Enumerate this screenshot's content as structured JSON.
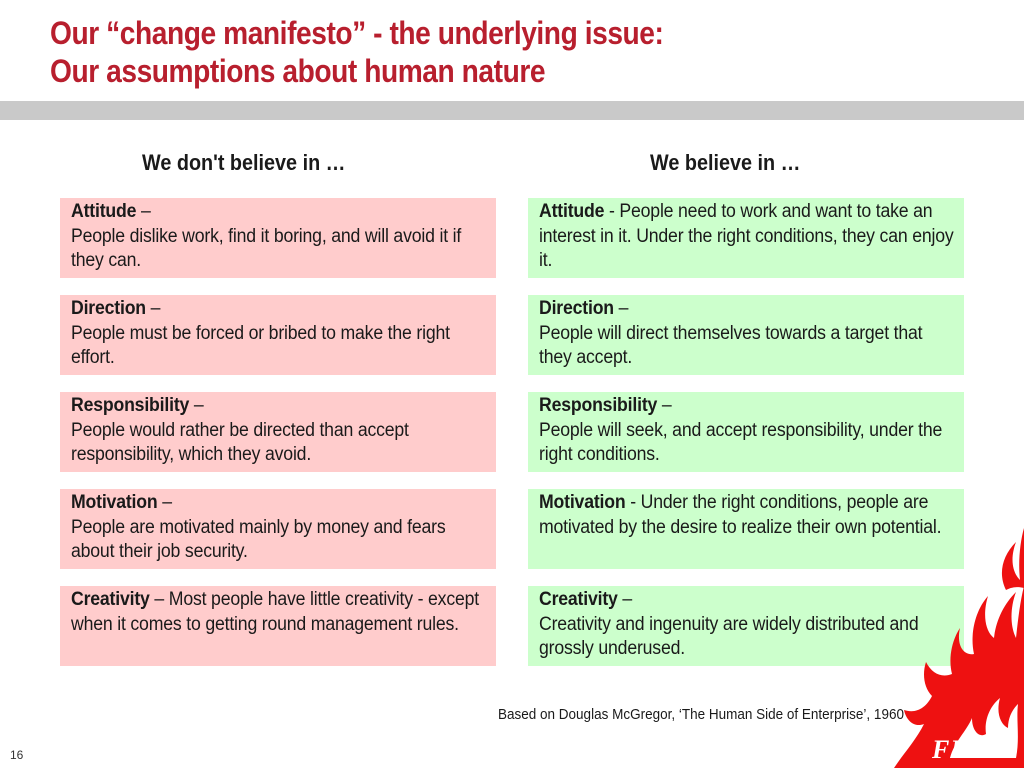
{
  "slide": {
    "title_line1": "Our “change manifesto” - the underlying issue:",
    "title_line2": "Our assumptions about human nature",
    "page_number": "16",
    "footnote": "Based on Douglas McGregor, ‘The Human Side of Enterprise’, 1960",
    "logo_text": "FIRE"
  },
  "columns": {
    "left_heading": "We don't believe in …",
    "right_heading": "We believe in …"
  },
  "dont_believe": [
    {
      "term": "Attitude",
      "separator": " –",
      "text": "People dislike work, find it boring, and will avoid it if they can."
    },
    {
      "term": "Direction",
      "separator": " –",
      "text": "People must be forced or bribed to make the right effort."
    },
    {
      "term": "Responsibility",
      "separator": " –",
      "text": "People would rather be directed than accept responsibility, which they avoid."
    },
    {
      "term": "Motivation",
      "separator": " –",
      "text": "People are motivated mainly by money and fears about their job security."
    },
    {
      "term": "Creativity",
      "separator": " – ",
      "text": "Most people have little creativity - except when it comes to getting round management rules."
    }
  ],
  "believe": [
    {
      "term": "Attitude",
      "separator": " - ",
      "text": "People need to work and want to take an interest in it. Under the right conditions, they can enjoy it."
    },
    {
      "term": "Direction",
      "separator": " –",
      "text": "People will direct themselves towards a target that they accept."
    },
    {
      "term": "Responsibility",
      "separator": " –",
      "text": "People will seek, and accept responsibility, under the right conditions."
    },
    {
      "term": "Motivation",
      "separator": " - ",
      "text": "Under the right conditions, people are motivated by the desire to realize their own potential."
    },
    {
      "term": "Creativity",
      "separator": " –",
      "text": "Creativity and ingenuity are widely distributed and grossly underused."
    }
  ],
  "colors": {
    "title": "#b81f2e",
    "negative_box": "#ffcccc",
    "positive_box": "#ccffcc",
    "divider": "#c9c9c9",
    "flame": "#ee1111"
  },
  "icons": {
    "logo": "flame-icon"
  }
}
